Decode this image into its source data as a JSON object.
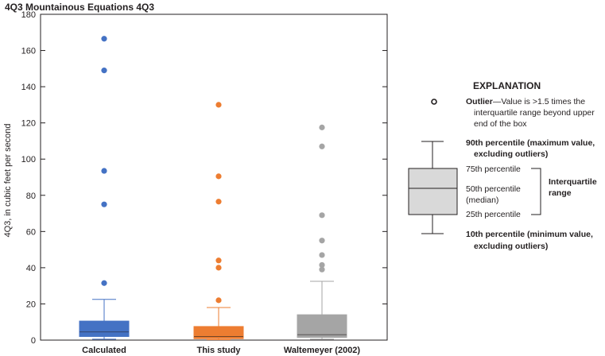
{
  "chart_data": {
    "type": "box",
    "title": "4Q3 Mountainous Equations 4Q3",
    "xlabel": "",
    "ylabel": "4Q3, in cubic feet per second",
    "ylim": [
      0,
      180
    ],
    "yticks": [
      0,
      20,
      40,
      60,
      80,
      100,
      120,
      140,
      160,
      180
    ],
    "grid": false,
    "categories": [
      "Calculated",
      "This study",
      "Waltemeyer (2002)"
    ],
    "series": [
      {
        "category": "Calculated",
        "color": "#4472c4",
        "whisker_low": 0.5,
        "q1": 2,
        "median": 4.5,
        "q3": 10.5,
        "whisker_high": 22.5,
        "outliers": [
          31.5,
          75,
          93.5,
          149,
          166.5
        ]
      },
      {
        "category": "This study",
        "color": "#ed7d31",
        "whisker_low": 0.2,
        "q1": 0.8,
        "median": 2,
        "q3": 7.5,
        "whisker_high": 18,
        "outliers": [
          22,
          40,
          44,
          76.5,
          90.5,
          130
        ]
      },
      {
        "category": "Waltemeyer (2002)",
        "color": "#a5a5a5",
        "whisker_low": 0.5,
        "q1": 1.5,
        "median": 3,
        "q3": 14,
        "whisker_high": 32.5,
        "outliers": [
          39,
          41.5,
          47,
          55,
          69,
          107,
          117.5
        ]
      }
    ]
  },
  "legend": {
    "title": "EXPLANATION",
    "outlier_bold": "Outlier",
    "outlier_line1": "—Value is >1.5 times the",
    "outlier_line2": "interquartile range beyond upper",
    "outlier_line3": "end of the box",
    "p90_line1": "90th percentile (maximum value,",
    "p90_line2": "excluding outliers)",
    "p75": "75th percentile",
    "p50_line1": "50th percentile",
    "p50_line2": "(median)",
    "p25": "25th percentile",
    "iqr_line1": "Interquartile",
    "iqr_line2": "range",
    "p10_line1": "10th percentile (minimum value,",
    "p10_line2": "excluding outliers)"
  }
}
